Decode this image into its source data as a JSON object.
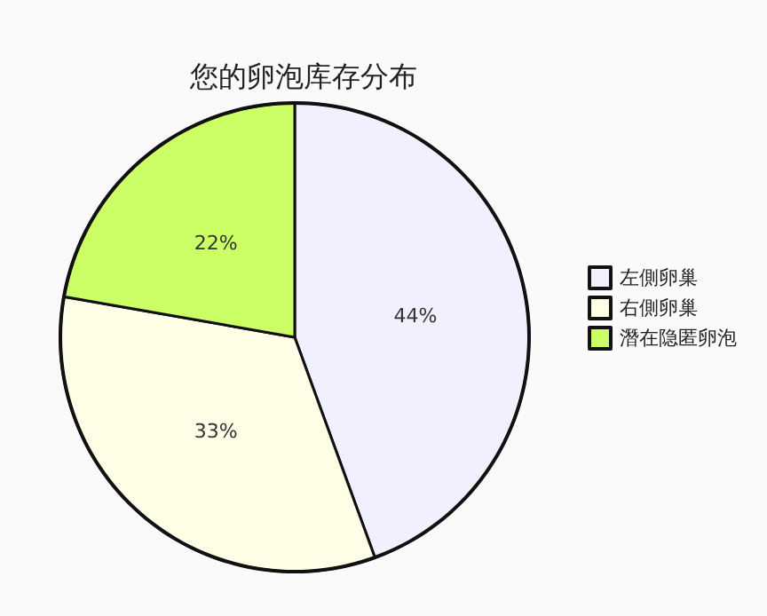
{
  "chart_data": {
    "type": "pie",
    "title": "您的卵泡库存分布",
    "categories": [
      "左側卵巢",
      "右側卵巢",
      "潛在隐匿卵泡"
    ],
    "values": [
      44,
      33,
      22
    ],
    "value_labels": [
      "44%",
      "33%",
      "22%"
    ],
    "colors": [
      "#f0f0ff",
      "#ffffe8",
      "#ccff66"
    ],
    "legend": "right"
  }
}
